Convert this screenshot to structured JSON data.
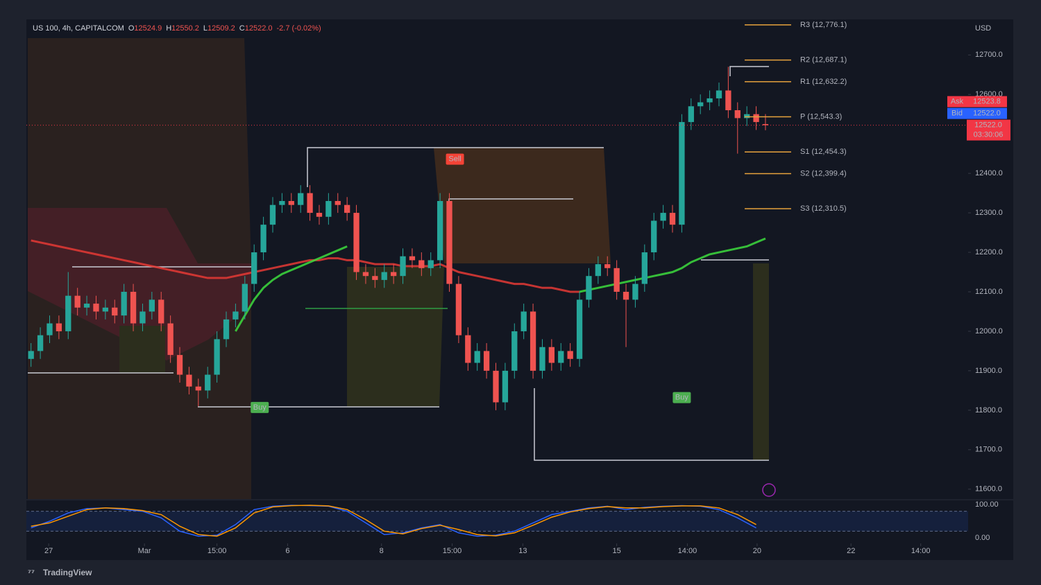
{
  "chart_data": [
    {
      "type": "candlestick",
      "title": "US 100, 4h, CAPITALCOM",
      "ohlc": [
        {
          "key": "O",
          "value": 12524.9
        },
        {
          "key": "H",
          "value": 12550.2
        },
        {
          "key": "L",
          "value": 12509.2
        },
        {
          "key": "C",
          "value": 12522.0,
          "label": "12522.0"
        }
      ],
      "change_label": "-2.7 (-0.02%)",
      "currency": "USD",
      "up_color": "#26a69a",
      "down_color": "#ef5350",
      "x": [
        0,
        1,
        2,
        3,
        4,
        5,
        6,
        7,
        8,
        9,
        10,
        11,
        12,
        13,
        14,
        15,
        16,
        17,
        18,
        19,
        20,
        21,
        22,
        23,
        24,
        25,
        26,
        27,
        28,
        29,
        30,
        31,
        32,
        33,
        34,
        35,
        36,
        37,
        38,
        39,
        40,
        41,
        42,
        43,
        44,
        45,
        46,
        47,
        48,
        49,
        50,
        51,
        52,
        53,
        54,
        55,
        56,
        57,
        58,
        59,
        60,
        61,
        62,
        63,
        64,
        65,
        66,
        67,
        68,
        69,
        70,
        71,
        72,
        73,
        74,
        75,
        76,
        77,
        78,
        79
      ],
      "open": [
        11930,
        11950,
        11990,
        12020,
        12000,
        12090,
        12060,
        12070,
        12050,
        12060,
        12040,
        12100,
        12020,
        12050,
        12080,
        12020,
        11940,
        11890,
        11860,
        11850,
        11890,
        11980,
        12030,
        12050,
        12120,
        12200,
        12270,
        12320,
        12330,
        12320,
        12350,
        12300,
        12290,
        12330,
        12320,
        12300,
        12150,
        12140,
        12130,
        12150,
        12140,
        12190,
        12180,
        12160,
        12180,
        12330,
        12120,
        11990,
        11920,
        11950,
        11900,
        11820,
        11900,
        12000,
        12050,
        11900,
        11960,
        11920,
        11950,
        11930,
        12080,
        12140,
        12170,
        12160,
        12100,
        12080,
        12120,
        12200,
        12280,
        12300,
        12270,
        12530,
        12570,
        12580,
        12590,
        12610,
        12560,
        12540,
        12550,
        12524.9
      ],
      "high": [
        11970,
        12010,
        12040,
        12040,
        12150,
        12110,
        12090,
        12090,
        12080,
        12080,
        12120,
        12120,
        12070,
        12100,
        12100,
        12040,
        11960,
        11910,
        11880,
        11910,
        12000,
        12050,
        12070,
        12140,
        12220,
        12290,
        12340,
        12350,
        12350,
        12370,
        12370,
        12320,
        12350,
        12350,
        12340,
        12320,
        12170,
        12160,
        12170,
        12170,
        12210,
        12210,
        12200,
        12200,
        12350,
        12350,
        12140,
        12010,
        11970,
        11970,
        11920,
        11920,
        12020,
        12070,
        12070,
        11980,
        11980,
        11970,
        11970,
        12100,
        12160,
        12190,
        12190,
        12180,
        12120,
        12140,
        12220,
        12300,
        12320,
        12320,
        12550,
        12590,
        12600,
        12610,
        12630,
        12670,
        12580,
        12570,
        12570,
        12550.2
      ],
      "low": [
        11910,
        11930,
        11970,
        11980,
        11980,
        12040,
        12040,
        12030,
        12030,
        12020,
        12020,
        12000,
        12000,
        12030,
        12000,
        11920,
        11870,
        11840,
        11810,
        11830,
        11870,
        11960,
        12010,
        12030,
        12100,
        12180,
        12250,
        12300,
        12300,
        12300,
        12280,
        12270,
        12270,
        12300,
        12280,
        12130,
        12120,
        12110,
        12110,
        12120,
        12120,
        12160,
        12140,
        12140,
        12160,
        12100,
        11970,
        11900,
        11900,
        11880,
        11800,
        11800,
        11880,
        11980,
        11880,
        11880,
        11900,
        11900,
        11910,
        11910,
        12060,
        12120,
        12140,
        12080,
        11960,
        12060,
        12100,
        12180,
        12260,
        12250,
        12250,
        12510,
        12550,
        12560,
        12570,
        12540,
        12450,
        12520,
        12510,
        12509.2
      ],
      "close": [
        11950,
        11990,
        12020,
        12000,
        12090,
        12060,
        12070,
        12050,
        12060,
        12040,
        12100,
        12020,
        12050,
        12080,
        12020,
        11940,
        11890,
        11860,
        11850,
        11890,
        11980,
        12030,
        12050,
        12120,
        12200,
        12270,
        12320,
        12330,
        12320,
        12350,
        12300,
        12290,
        12330,
        12320,
        12300,
        12150,
        12140,
        12130,
        12150,
        12140,
        12190,
        12180,
        12160,
        12180,
        12330,
        12120,
        11990,
        11920,
        11950,
        11900,
        11820,
        11900,
        12000,
        12050,
        11900,
        11960,
        11920,
        11950,
        11930,
        12080,
        12140,
        12170,
        12160,
        12100,
        12080,
        12120,
        12200,
        12280,
        12300,
        12270,
        12530,
        12570,
        12580,
        12590,
        12610,
        12560,
        12540,
        12550,
        12530,
        12522
      ],
      "overlays": [
        {
          "color": "#e53935",
          "x": [
            0,
            1,
            2,
            3,
            4,
            5,
            6,
            7,
            8,
            9,
            10,
            11,
            12,
            13,
            14,
            15,
            16,
            17,
            18,
            19,
            20,
            21,
            22,
            23,
            24,
            25,
            26,
            27,
            28,
            29,
            30,
            31,
            32,
            33,
            34,
            35,
            36,
            37,
            38,
            39,
            40,
            41,
            42,
            43,
            44,
            45,
            46,
            47,
            48,
            49,
            50,
            51,
            52,
            53,
            54,
            55,
            56,
            57,
            58,
            59
          ],
          "values": [
            12230,
            12225,
            12220,
            12215,
            12210,
            12205,
            12200,
            12195,
            12190,
            12185,
            12180,
            12175,
            12170,
            12165,
            12160,
            12155,
            12150,
            12145,
            12140,
            12135,
            12135,
            12135,
            12140,
            12145,
            12150,
            12155,
            12160,
            12165,
            12170,
            12175,
            12180,
            12180,
            12185,
            12185,
            12180,
            12180,
            12175,
            12170,
            12170,
            12170,
            12165,
            12165,
            12165,
            12165,
            12170,
            12160,
            12150,
            12145,
            12140,
            12135,
            12130,
            12125,
            12120,
            12120,
            12115,
            12110,
            12110,
            12105,
            12100,
            12100
          ]
        },
        {
          "color": "#3ddc3d",
          "x": [
            22,
            23,
            24,
            25,
            26,
            27,
            28,
            29,
            30,
            31,
            32,
            33,
            34
          ],
          "values": [
            12000,
            12040,
            12080,
            12110,
            12130,
            12145,
            12155,
            12165,
            12175,
            12185,
            12195,
            12205,
            12215
          ]
        },
        {
          "color": "#3ddc3d",
          "x": [
            59,
            60,
            61,
            62,
            63,
            64,
            65,
            66,
            67,
            68,
            69,
            70,
            71,
            72,
            73,
            74,
            75,
            76,
            77,
            78,
            79
          ],
          "values": [
            12100,
            12105,
            12110,
            12115,
            12120,
            12125,
            12130,
            12135,
            12140,
            12145,
            12150,
            12160,
            12175,
            12185,
            12195,
            12200,
            12205,
            12210,
            12215,
            12225,
            12235
          ]
        }
      ],
      "pivot_color": "#e8a33d",
      "pivots": [
        {
          "value": 12776.1,
          "label": "R3 (12,776.1)"
        },
        {
          "value": 12687.1,
          "label": "R2 (12,687.1)"
        },
        {
          "value": 12632.2,
          "label": "R1 (12,632.2)"
        },
        {
          "value": 12543.3,
          "label": "P (12,543.3)"
        },
        {
          "value": 12454.3,
          "label": "S1 (12,454.3)"
        },
        {
          "value": 12399.4,
          "label": "S2 (12,399.4)"
        },
        {
          "value": 12310.5,
          "label": "S3 (12,310.5)"
        }
      ],
      "annotations": [
        {
          "text": "Buy",
          "x": 24.6,
          "y": 11807,
          "color": "#4caf50"
        },
        {
          "text": "Sell",
          "x": 45.6,
          "y": 12436,
          "color": "#f44336"
        },
        {
          "text": "Buy",
          "x": 70,
          "y": 11832,
          "color": "#4caf50"
        }
      ],
      "price_tags": [
        {
          "name": "Ask",
          "value": 12523.8,
          "color": "#f23645"
        },
        {
          "name": "Bid",
          "value": 12522.0,
          "label": "12522.0",
          "color": "#2962ff"
        }
      ],
      "last_price": {
        "value": 12522.0,
        "label": "12522.0",
        "countdown": "03:30:06",
        "color": "#f23645"
      },
      "xlim": [
        -0.5,
        100.8
      ],
      "ylim": [
        11575,
        12790
      ],
      "xticks": [
        {
          "value": 1.9,
          "label": "27"
        },
        {
          "value": 12.2,
          "label": "Mar"
        },
        {
          "value": 20,
          "label": "15:00"
        },
        {
          "value": 27.6,
          "label": "6"
        },
        {
          "value": 37.7,
          "label": "8"
        },
        {
          "value": 45.3,
          "label": "15:00"
        },
        {
          "value": 52.9,
          "label": "13"
        },
        {
          "value": 63,
          "label": "15"
        },
        {
          "value": 70.6,
          "label": "14:00"
        },
        {
          "value": 78.1,
          "label": "20"
        },
        {
          "value": 88.2,
          "label": "22"
        },
        {
          "value": 95.7,
          "label": "14:00"
        }
      ],
      "yticks": [
        {
          "value": 11600,
          "label": "11600.0"
        },
        {
          "value": 11700,
          "label": "11700.0"
        },
        {
          "value": 11800,
          "label": "11800.0"
        },
        {
          "value": 11900,
          "label": "11900.0"
        },
        {
          "value": 12000,
          "label": "12000.0"
        },
        {
          "value": 12100,
          "label": "12100.0"
        },
        {
          "value": 12200,
          "label": "12200.0"
        },
        {
          "value": 12300,
          "label": "12300.0"
        },
        {
          "value": 12400,
          "label": "12400.0"
        },
        {
          "value": 12500,
          "label": "12500.0"
        },
        {
          "value": 12600,
          "label": "12600.0"
        },
        {
          "value": 12700,
          "label": "12700.0"
        }
      ]
    },
    {
      "type": "line",
      "x": [
        0,
        2,
        4,
        6,
        8,
        10,
        12,
        14,
        16,
        18,
        20,
        22,
        24,
        26,
        28,
        30,
        32,
        34,
        36,
        38,
        40,
        42,
        44,
        46,
        48,
        50,
        52,
        54,
        56,
        58,
        60,
        62,
        64,
        66,
        68,
        70,
        72,
        74,
        76,
        78
      ],
      "series": [
        {
          "color": "#2962ff",
          "values": [
            30,
            50,
            75,
            88,
            90,
            85,
            80,
            60,
            20,
            5,
            8,
            40,
            85,
            95,
            98,
            97,
            95,
            80,
            45,
            10,
            15,
            30,
            40,
            15,
            5,
            8,
            20,
            45,
            70,
            80,
            90,
            95,
            85,
            92,
            95,
            97,
            95,
            85,
            60,
            30
          ]
        },
        {
          "color": "#ff9800",
          "values": [
            35,
            45,
            65,
            85,
            90,
            88,
            82,
            70,
            35,
            10,
            5,
            30,
            75,
            93,
            97,
            98,
            96,
            85,
            55,
            20,
            12,
            28,
            38,
            25,
            10,
            6,
            15,
            38,
            62,
            78,
            88,
            94,
            90,
            90,
            94,
            96,
            96,
            90,
            70,
            40
          ]
        }
      ],
      "bands": [
        20,
        80
      ],
      "xlim": [
        -0.5,
        100.8
      ],
      "ylim": [
        -12.5,
        112.5
      ],
      "yticks": [
        {
          "value": 100,
          "label": "100.00"
        },
        {
          "value": 0,
          "label": "0.00"
        }
      ]
    }
  ],
  "footer": {
    "brand": "TradingView"
  }
}
